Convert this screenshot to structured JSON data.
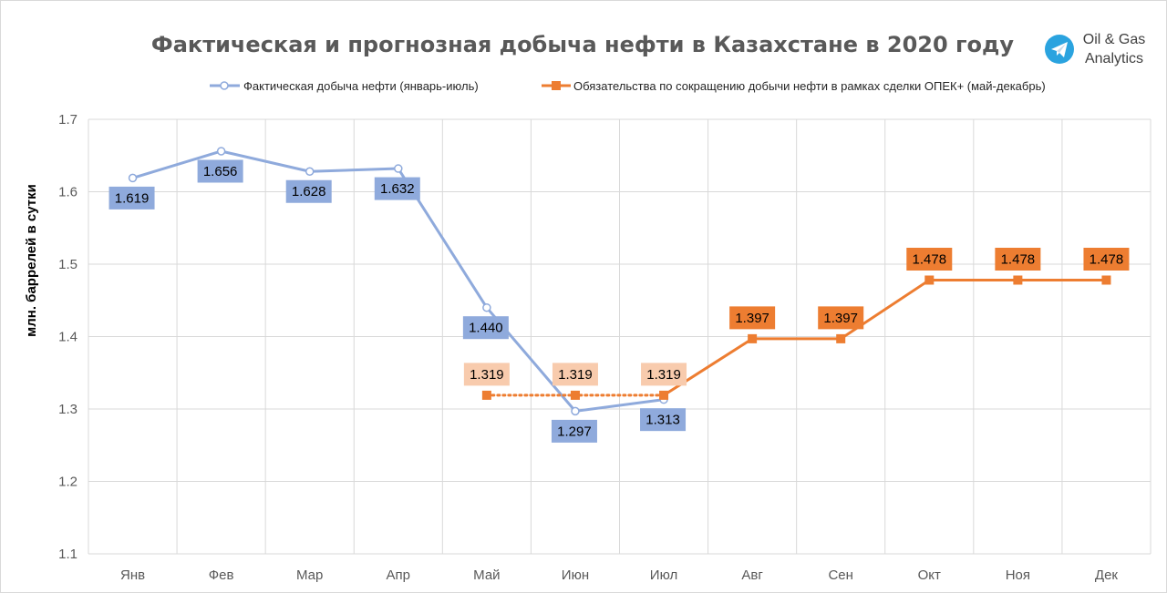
{
  "brand": {
    "line1": "Oil & Gas",
    "line2": "Analytics",
    "icon": "telegram-icon",
    "icon_color": "#2AA3DF"
  },
  "chart_data": {
    "type": "line",
    "title": "Фактическая и прогнозная добыча нефти в Казахстане в 2020 году",
    "ylabel": "млн. баррелей в сутки",
    "xlabel": "",
    "ylim": [
      1.1,
      1.7
    ],
    "yticks": [
      1.1,
      1.2,
      1.3,
      1.4,
      1.5,
      1.6,
      1.7
    ],
    "ytick_labels": [
      "1.1",
      "1.2",
      "1.3",
      "1.4",
      "1.5",
      "1.6",
      "1.7"
    ],
    "grid": true,
    "legend_position": "top",
    "categories": [
      "Янв",
      "Фев",
      "Мар",
      "Апр",
      "Май",
      "Июн",
      "Июл",
      "Авг",
      "Сен",
      "Окт",
      "Ноя",
      "Дек"
    ],
    "series": [
      {
        "name": "Фактическая добыча нефти (январь-июль)",
        "color": "#8FAADC",
        "label_bg": "#8FAADC",
        "marker": "circle",
        "values": [
          1.619,
          1.656,
          1.628,
          1.632,
          1.44,
          1.297,
          1.313,
          null,
          null,
          null,
          null,
          null
        ],
        "labels": [
          "1.619",
          "1.656",
          "1.628",
          "1.632",
          "1.440",
          "1.297",
          "1.313",
          null,
          null,
          null,
          null,
          null
        ]
      },
      {
        "name": "Обязательства по сокращению добычи нефти в рамках сделки ОПЕК+ (май-декабрь)",
        "color": "#ED7D31",
        "label_bg": "#ED7D31",
        "label_bg_dotted": "#F8CBAD",
        "marker": "square",
        "values": [
          null,
          null,
          null,
          null,
          1.319,
          1.319,
          1.319,
          1.397,
          1.397,
          1.478,
          1.478,
          1.478
        ],
        "labels": [
          null,
          null,
          null,
          null,
          "1.319",
          "1.319",
          "1.319",
          "1.397",
          "1.397",
          "1.478",
          "1.478",
          "1.478"
        ],
        "dotted_segment_categories": [
          "Май",
          "Июн",
          "Июл"
        ]
      }
    ]
  }
}
